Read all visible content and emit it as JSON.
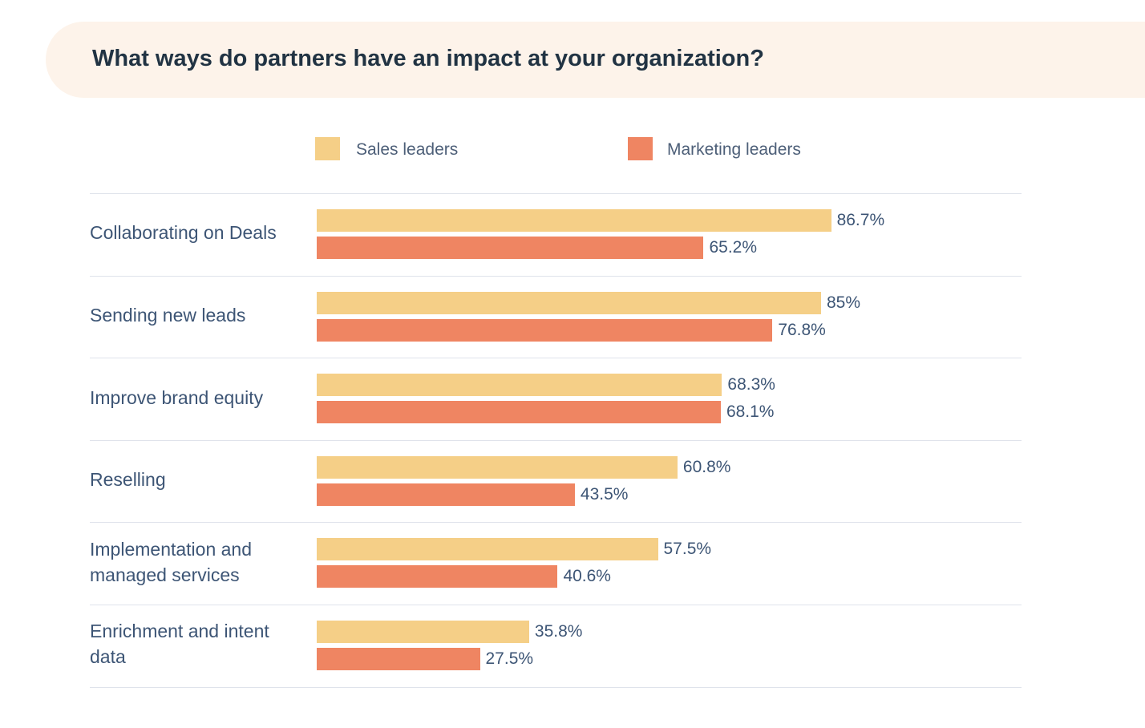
{
  "chart_data": {
    "type": "bar",
    "orientation": "horizontal",
    "title": "What ways do partners have an impact at your organization?",
    "categories": [
      "Collaborating on Deals",
      "Sending new leads",
      "Improve brand equity",
      "Reselling",
      "Implementation and managed services",
      "Enrichment and intent data"
    ],
    "series": [
      {
        "name": "Sales leaders",
        "color": "#f5cf87",
        "values": [
          86.7,
          85,
          68.3,
          60.8,
          57.5,
          35.8
        ],
        "labels": [
          "86.7%",
          "85%",
          "68.3%",
          "60.8%",
          "57.5%",
          "35.8%"
        ]
      },
      {
        "name": "Marketing leaders",
        "color": "#ef8562",
        "values": [
          65.2,
          76.8,
          68.1,
          43.5,
          40.6,
          27.5
        ],
        "labels": [
          "65.2%",
          "76.8%",
          "68.1%",
          "43.5%",
          "40.6%",
          "27.5%"
        ]
      }
    ],
    "legend_position": "top",
    "xlim": [
      0,
      100
    ],
    "grid": false,
    "banner_color": "#fdf3ea"
  }
}
